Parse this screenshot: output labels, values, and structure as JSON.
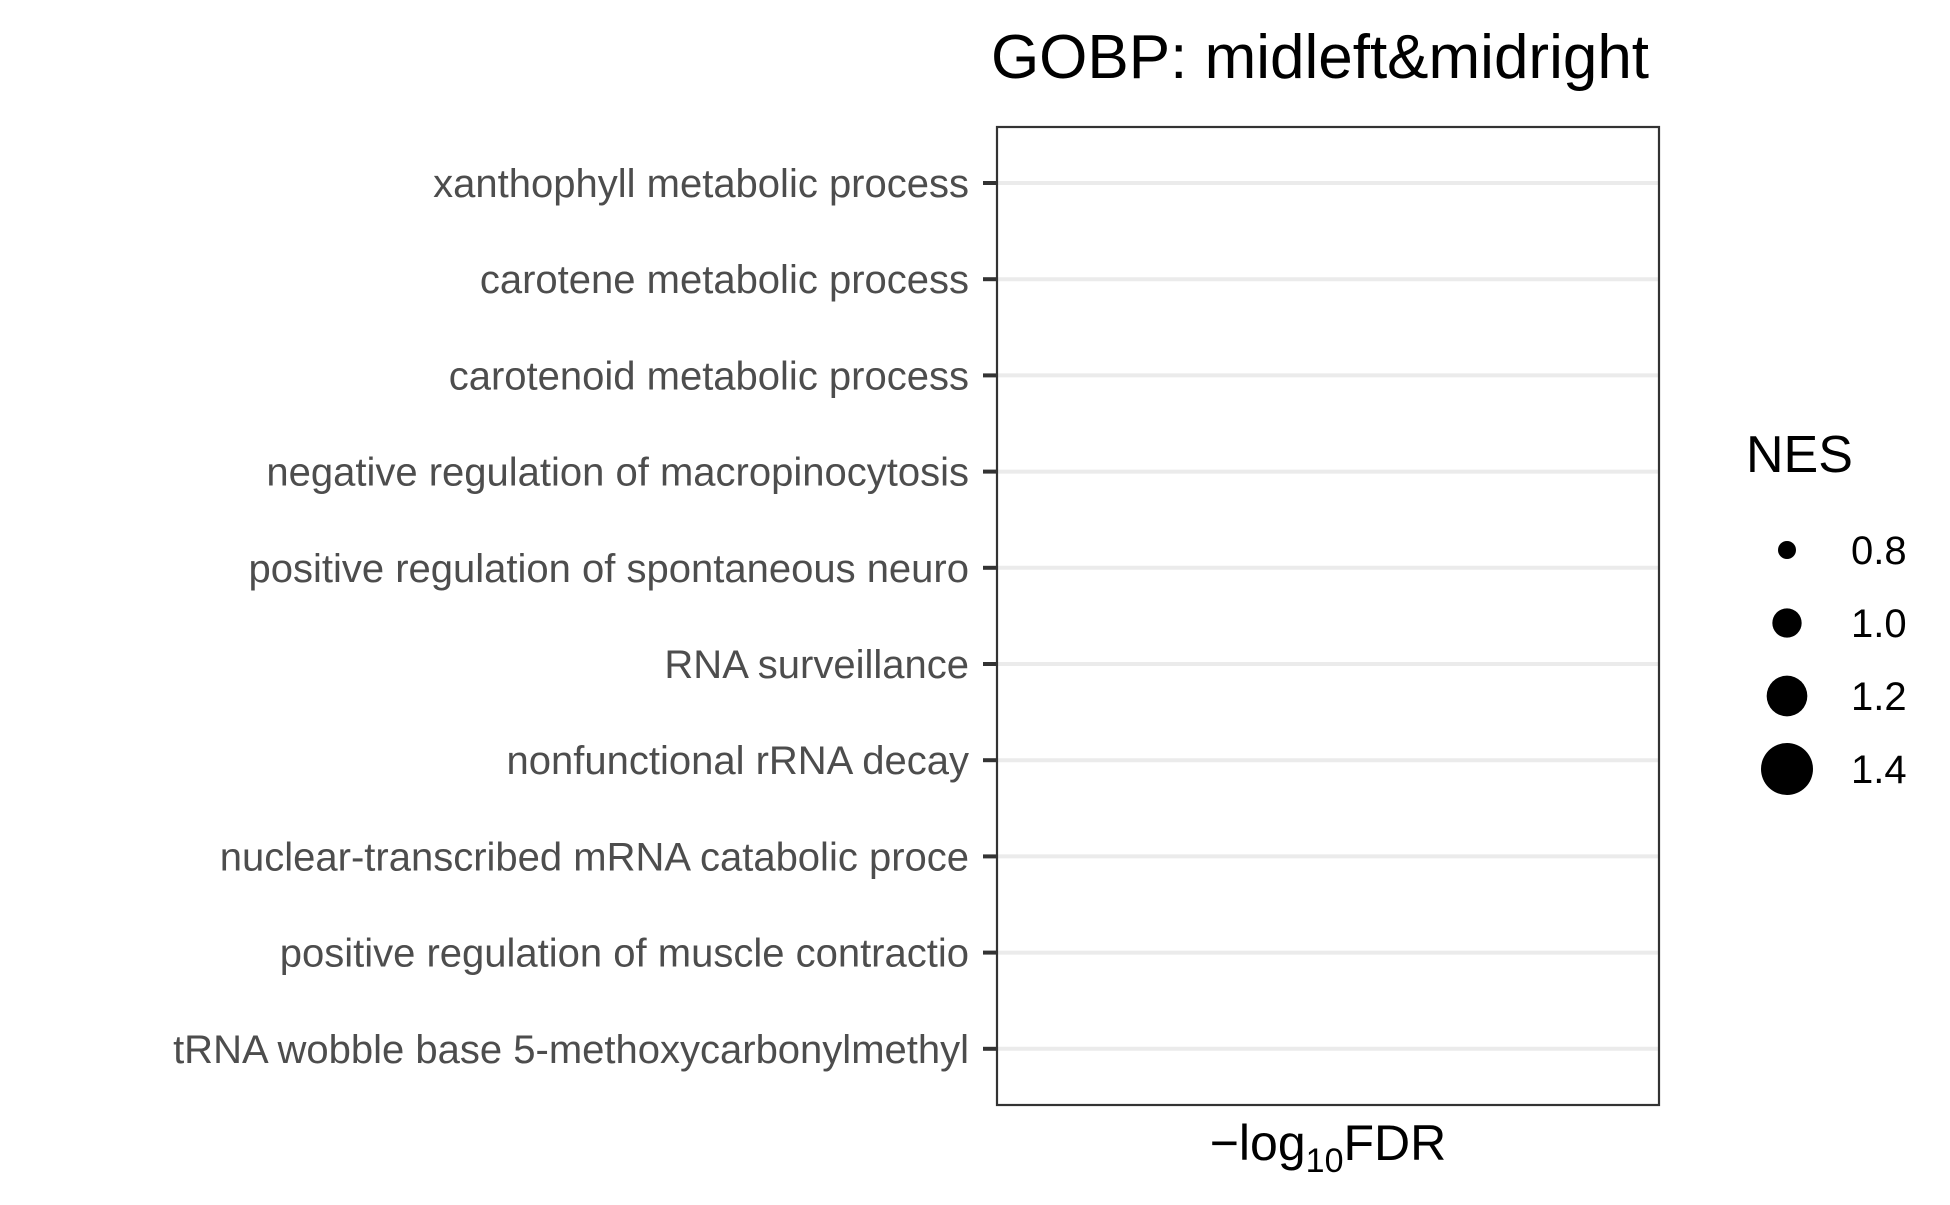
{
  "chart_data": {
    "type": "scatter",
    "title": "GOBP: midleft&midright",
    "xlabel": {
      "prefix": "−log",
      "subscript": "10",
      "suffix": "FDR"
    },
    "ylabel": "",
    "categories": [
      "xanthophyll metabolic process",
      "carotene metabolic process",
      "carotenoid metabolic process",
      "negative regulation of macropinocytosis",
      "positive regulation of spontaneous neuro",
      "RNA surveillance",
      "nonfunctional rRNA decay",
      "nuclear-transcribed mRNA catabolic proce",
      "positive regulation of muscle contractio",
      "tRNA wobble base 5-methoxycarbonylmethyl"
    ],
    "points": [],
    "grid": true,
    "legend": {
      "title": "NES",
      "position": "right",
      "entries": [
        {
          "label": "0.8",
          "value": 0.8
        },
        {
          "label": "1.0",
          "value": 1.0
        },
        {
          "label": "1.2",
          "value": 1.2
        },
        {
          "label": "1.4",
          "value": 1.4
        }
      ]
    },
    "colors": {
      "grid": "#ebebeb",
      "panel_border": "#333333",
      "tick_text": "#4d4d4d",
      "tick_mark": "#333333",
      "legend_point": "#000000"
    }
  }
}
